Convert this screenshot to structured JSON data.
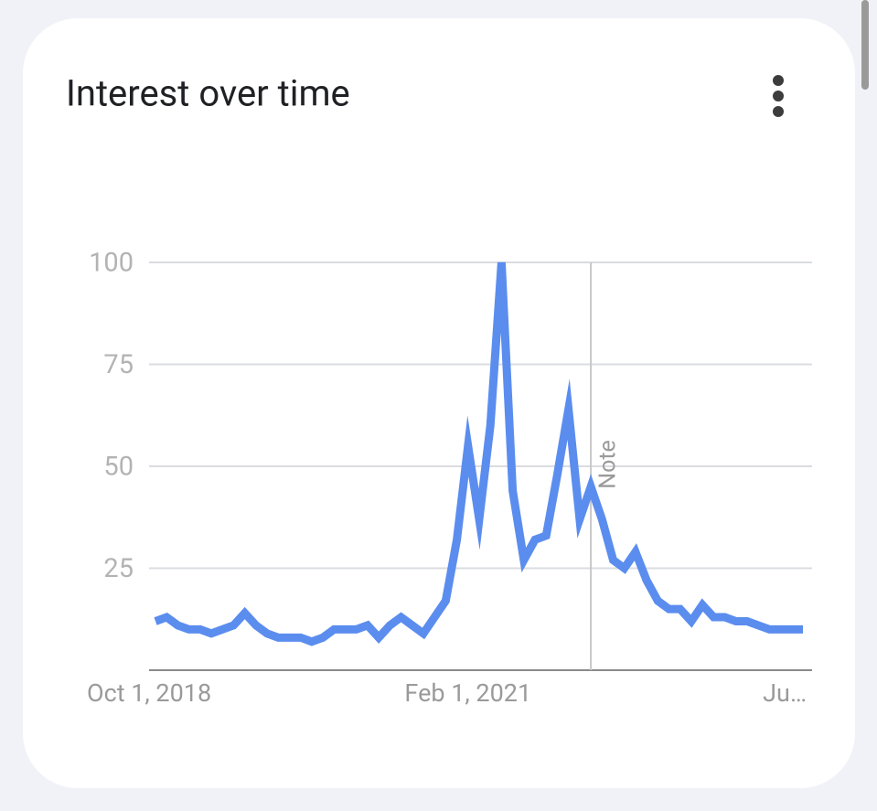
{
  "chart_data": {
    "type": "line",
    "title": "Interest over time",
    "categories": [
      "Oct 1, 2018",
      null,
      null,
      null,
      null,
      null,
      null,
      null,
      null,
      null,
      null,
      null,
      null,
      null,
      null,
      null,
      null,
      null,
      null,
      null,
      null,
      null,
      null,
      null,
      null,
      null,
      null,
      null,
      "Feb 1, 2021",
      null,
      null,
      null,
      null,
      null,
      null,
      null,
      null,
      null,
      null,
      null,
      null,
      null,
      null,
      null,
      null,
      null,
      null,
      null,
      null,
      null,
      null,
      null,
      null,
      null,
      null,
      null,
      null,
      null,
      "Ju…"
    ],
    "values": [
      12,
      13,
      11,
      10,
      10,
      9,
      10,
      11,
      14,
      11,
      9,
      8,
      8,
      8,
      7,
      8,
      10,
      10,
      10,
      11,
      8,
      11,
      13,
      11,
      9,
      13,
      17,
      32,
      55,
      37,
      60,
      100,
      44,
      27,
      32,
      33,
      48,
      64,
      37,
      45,
      37,
      27,
      25,
      29,
      22,
      17,
      15,
      15,
      12,
      16,
      13,
      13,
      12,
      12,
      11,
      10,
      10,
      10,
      10
    ],
    "color": "#5b8def",
    "ylim": [
      0,
      100
    ],
    "yticks": [
      25,
      50,
      75,
      100
    ],
    "grid": true,
    "annotations": [
      {
        "text": "Note",
        "x": 39
      }
    ]
  }
}
